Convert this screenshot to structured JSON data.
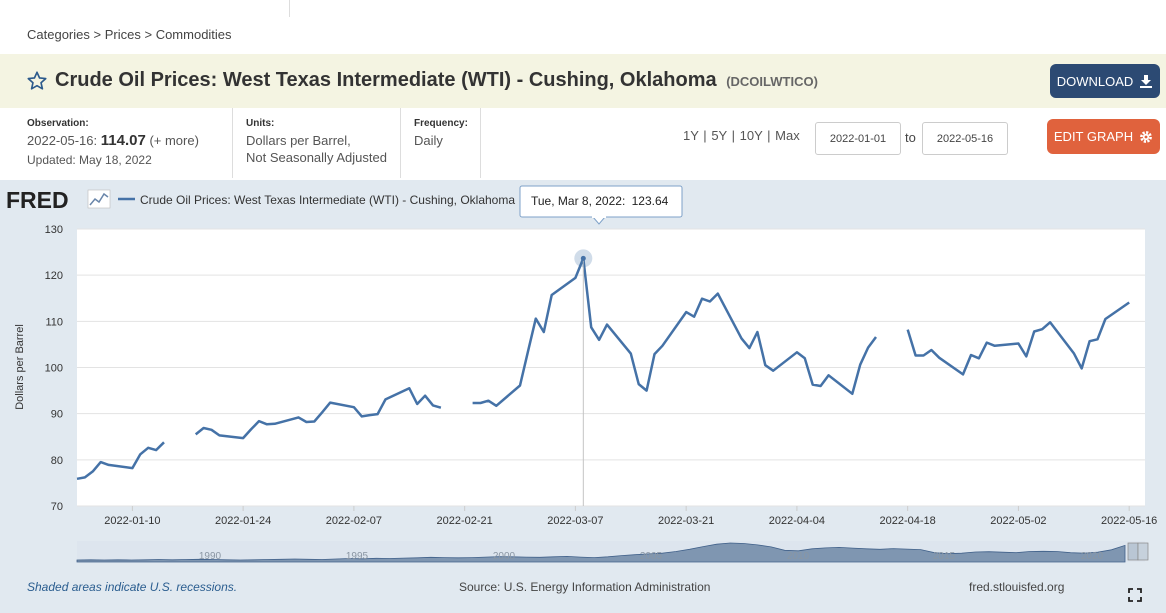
{
  "breadcrumb": [
    "Categories",
    "Prices",
    "Commodities"
  ],
  "breadcrumb_sep": ">",
  "title": "Crude Oil Prices: West Texas Intermediate (WTI) - Cushing, Oklahoma",
  "series_id": "(DCOILWTICO)",
  "buttons": {
    "download": "DOWNLOAD",
    "edit_graph": "EDIT GRAPH"
  },
  "observation": {
    "label": "Observation:",
    "date": "2022-05-16:",
    "value": "114.07",
    "more": "(+ more)",
    "updated": "Updated: May 18, 2022"
  },
  "units": {
    "label": "Units:",
    "line1": "Dollars per Barrel,",
    "line2": "Not Seasonally Adjusted"
  },
  "frequency": {
    "label": "Frequency:",
    "value": "Daily"
  },
  "range_links": [
    "1Y",
    "5Y",
    "10Y",
    "Max"
  ],
  "range_sep": "|",
  "date_from": "2022-01-01",
  "date_to": "2022-05-16",
  "to_label": "to",
  "logo": "FRED",
  "tooltip": {
    "date": "Tue, Mar 8, 2022:",
    "value": "123.64"
  },
  "footer": {
    "recessions": "Shaded areas indicate U.S. recessions.",
    "source": "Source: U.S. Energy Information Administration",
    "site": "fred.stlouisfed.org"
  },
  "colors": {
    "line": "#4572a7",
    "panel": "#e1e9f0",
    "title_bar": "#f4f4e2",
    "download": "#2c4a73",
    "edit": "#e0623d"
  },
  "icons": [
    "star-icon",
    "download-icon",
    "gear-icon",
    "fred-logo-icon",
    "fullscreen-icon"
  ],
  "chart_data": {
    "type": "line",
    "ylabel": "Dollars per Barrel",
    "ylim": [
      70,
      130
    ],
    "yticks": [
      70,
      80,
      90,
      100,
      110,
      120,
      130
    ],
    "xlim": [
      "2022-01-03",
      "2022-05-18"
    ],
    "xticks": [
      "2022-01-10",
      "2022-01-24",
      "2022-02-07",
      "2022-02-21",
      "2022-03-07",
      "2022-03-21",
      "2022-04-04",
      "2022-04-18",
      "2022-05-02",
      "2022-05-16"
    ],
    "grid": true,
    "legend_position": "top-left",
    "series": [
      {
        "name": "Crude Oil Prices: West Texas Intermediate (WTI) - Cushing, Oklahoma",
        "color": "#4572a7",
        "points": [
          [
            "2022-01-03",
            75.9
          ],
          [
            "2022-01-04",
            76.2
          ],
          [
            "2022-01-05",
            77.5
          ],
          [
            "2022-01-06",
            79.5
          ],
          [
            "2022-01-07",
            78.9
          ],
          [
            "2022-01-10",
            78.2
          ],
          [
            "2022-01-11",
            81.2
          ],
          [
            "2022-01-12",
            82.6
          ],
          [
            "2022-01-13",
            82.1
          ],
          [
            "2022-01-14",
            83.8
          ],
          [
            "2022-01-17",
            null
          ],
          [
            "2022-01-18",
            85.5
          ],
          [
            "2022-01-19",
            86.9
          ],
          [
            "2022-01-20",
            86.5
          ],
          [
            "2022-01-21",
            85.3
          ],
          [
            "2022-01-24",
            84.7
          ],
          [
            "2022-01-25",
            86.6
          ],
          [
            "2022-01-26",
            88.4
          ],
          [
            "2022-01-27",
            87.7
          ],
          [
            "2022-01-28",
            87.8
          ],
          [
            "2022-01-31",
            89.2
          ],
          [
            "2022-02-01",
            88.2
          ],
          [
            "2022-02-02",
            88.3
          ],
          [
            "2022-02-03",
            90.3
          ],
          [
            "2022-02-04",
            92.4
          ],
          [
            "2022-02-07",
            91.4
          ],
          [
            "2022-02-08",
            89.4
          ],
          [
            "2022-02-09",
            89.7
          ],
          [
            "2022-02-10",
            89.9
          ],
          [
            "2022-02-11",
            93.1
          ],
          [
            "2022-02-14",
            95.5
          ],
          [
            "2022-02-15",
            92.1
          ],
          [
            "2022-02-16",
            93.9
          ],
          [
            "2022-02-17",
            91.8
          ],
          [
            "2022-02-18",
            91.3
          ],
          [
            "2022-02-21",
            null
          ],
          [
            "2022-02-22",
            92.3
          ],
          [
            "2022-02-23",
            92.3
          ],
          [
            "2022-02-24",
            92.8
          ],
          [
            "2022-02-25",
            91.7
          ],
          [
            "2022-02-28",
            96.1
          ],
          [
            "2022-03-01",
            103.4
          ],
          [
            "2022-03-02",
            110.6
          ],
          [
            "2022-03-03",
            107.7
          ],
          [
            "2022-03-04",
            115.7
          ],
          [
            "2022-03-07",
            119.4
          ],
          [
            "2022-03-08",
            123.64
          ],
          [
            "2022-03-09",
            108.7
          ],
          [
            "2022-03-10",
            106.0
          ],
          [
            "2022-03-11",
            109.3
          ],
          [
            "2022-03-14",
            103.0
          ],
          [
            "2022-03-15",
            96.4
          ],
          [
            "2022-03-16",
            95.0
          ],
          [
            "2022-03-17",
            102.9
          ],
          [
            "2022-03-18",
            104.7
          ],
          [
            "2022-03-21",
            112.0
          ],
          [
            "2022-03-22",
            111.0
          ],
          [
            "2022-03-23",
            114.9
          ],
          [
            "2022-03-24",
            114.3
          ],
          [
            "2022-03-25",
            116.0
          ],
          [
            "2022-03-28",
            106.3
          ],
          [
            "2022-03-29",
            104.2
          ],
          [
            "2022-03-30",
            107.7
          ],
          [
            "2022-03-31",
            100.5
          ],
          [
            "2022-04-01",
            99.3
          ],
          [
            "2022-04-04",
            103.3
          ],
          [
            "2022-04-05",
            102.0
          ],
          [
            "2022-04-06",
            96.3
          ],
          [
            "2022-04-07",
            96.0
          ],
          [
            "2022-04-08",
            98.3
          ],
          [
            "2022-04-11",
            94.3
          ],
          [
            "2022-04-12",
            100.6
          ],
          [
            "2022-04-13",
            104.3
          ],
          [
            "2022-04-14",
            106.6
          ],
          [
            "2022-04-15",
            null
          ],
          [
            "2022-04-18",
            108.2
          ],
          [
            "2022-04-19",
            102.6
          ],
          [
            "2022-04-20",
            102.6
          ],
          [
            "2022-04-21",
            103.8
          ],
          [
            "2022-04-22",
            102.1
          ],
          [
            "2022-04-25",
            98.5
          ],
          [
            "2022-04-26",
            102.7
          ],
          [
            "2022-04-27",
            102.0
          ],
          [
            "2022-04-28",
            105.4
          ],
          [
            "2022-04-29",
            104.7
          ],
          [
            "2022-05-02",
            105.2
          ],
          [
            "2022-05-03",
            102.4
          ],
          [
            "2022-05-04",
            107.8
          ],
          [
            "2022-05-05",
            108.3
          ],
          [
            "2022-05-06",
            109.8
          ],
          [
            "2022-05-09",
            103.1
          ],
          [
            "2022-05-10",
            99.8
          ],
          [
            "2022-05-11",
            105.7
          ],
          [
            "2022-05-12",
            106.1
          ],
          [
            "2022-05-13",
            110.5
          ],
          [
            "2022-05-16",
            114.07
          ]
        ]
      }
    ],
    "navigator": {
      "labels": [
        "1990",
        "1995",
        "2000",
        "2005",
        "2010",
        "2015",
        "2020"
      ]
    }
  }
}
